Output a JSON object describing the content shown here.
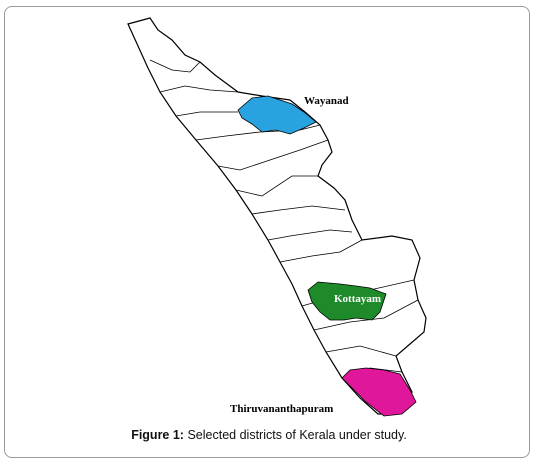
{
  "map": {
    "labels": [
      "Wayanad",
      "Kottayam",
      "Thiruvananthapuram"
    ]
  },
  "caption": {
    "label": "Figure 1:",
    "text": "Selected districts of Kerala under study."
  }
}
